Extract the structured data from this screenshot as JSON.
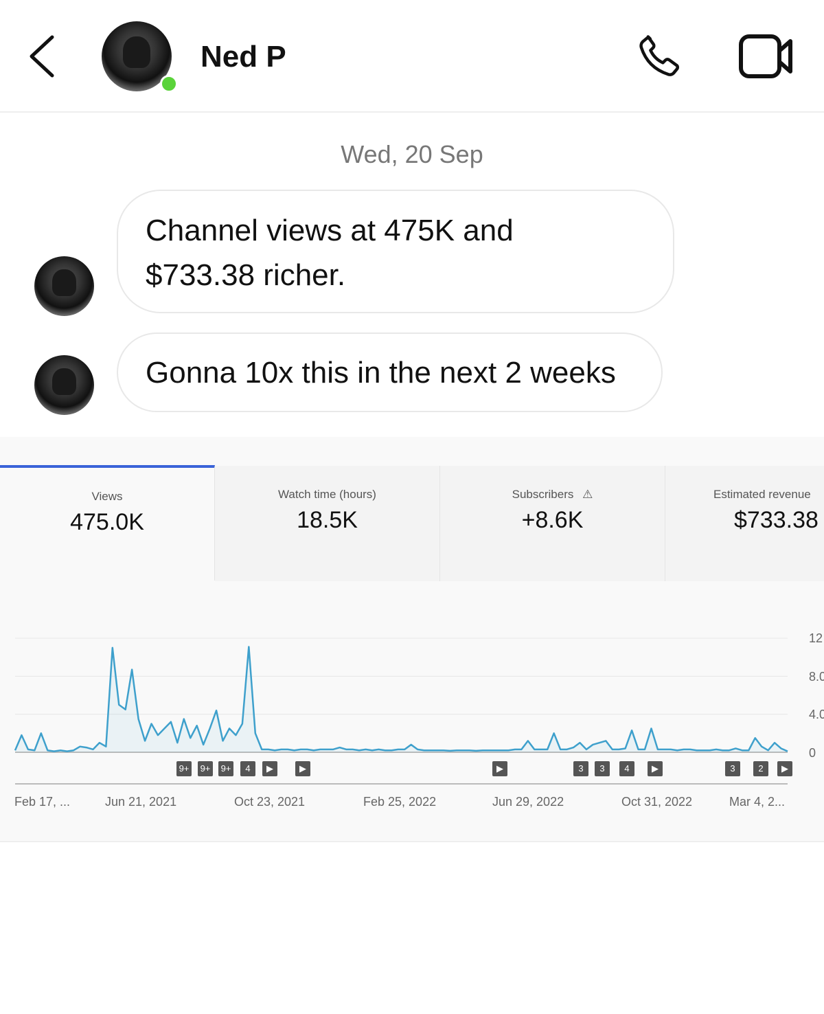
{
  "header": {
    "contact_name": "Ned P",
    "online": true,
    "online_color": "#5ad33a",
    "icons": [
      "chevron-left-icon",
      "phone-icon",
      "video-camera-icon"
    ]
  },
  "chat": {
    "date": "Wed, 20 Sep",
    "messages": [
      {
        "text_line1": "Channel views at 475K and",
        "text_line2": "$733.38 richer."
      },
      {
        "text": "Gonna 10x this in the next 2 weeks"
      }
    ]
  },
  "analytics": {
    "accent": "#3a63d8",
    "tabs": [
      {
        "label": "Views",
        "value": "475.0K",
        "selected": true
      },
      {
        "label": "Watch time (hours)",
        "value": "18.5K"
      },
      {
        "label": "Subscribers",
        "value": "+8.6K",
        "icon": "warning-icon"
      },
      {
        "label": "Estimated revenue",
        "value": "$733.38"
      }
    ],
    "markers": [
      "9+",
      "9+",
      "9+",
      "4",
      "▶",
      "▶",
      "▶",
      "3",
      "3",
      "4",
      "▶",
      "3",
      "2",
      "▶"
    ]
  },
  "chart_data": {
    "type": "line",
    "color": "#3ea0cc",
    "grid": true,
    "x_ticks": [
      "Feb 17, ...",
      "Jun 21, 2021",
      "Oct 23, 2021",
      "Feb 25, 2022",
      "Jun 29, 2022",
      "Oct 31, 2022",
      "Mar 4, 2..."
    ],
    "y_ticks": [
      "12",
      "8.0",
      "4.0",
      "0"
    ],
    "ylim": [
      0,
      12
    ],
    "values": [
      0.2,
      1.8,
      0.3,
      0.2,
      2.0,
      0.2,
      0.1,
      0.2,
      0.1,
      0.2,
      0.6,
      0.5,
      0.3,
      1.0,
      0.6,
      11.0,
      5.0,
      4.5,
      8.7,
      3.5,
      1.2,
      3.0,
      1.8,
      2.5,
      3.2,
      1.0,
      3.5,
      1.5,
      2.8,
      0.8,
      2.5,
      4.4,
      1.2,
      2.5,
      1.8,
      3.0,
      11.1,
      2.0,
      0.3,
      0.3,
      0.2,
      0.3,
      0.3,
      0.2,
      0.3,
      0.3,
      0.2,
      0.3,
      0.3,
      0.3,
      0.5,
      0.3,
      0.3,
      0.2,
      0.3,
      0.2,
      0.3,
      0.2,
      0.2,
      0.3,
      0.3,
      0.8,
      0.3,
      0.2,
      0.2,
      0.2,
      0.2,
      0.15,
      0.2,
      0.2,
      0.2,
      0.15,
      0.2,
      0.2,
      0.2,
      0.2,
      0.2,
      0.3,
      0.3,
      1.2,
      0.3,
      0.3,
      0.3,
      2.0,
      0.3,
      0.3,
      0.5,
      1.0,
      0.3,
      0.8,
      1.0,
      1.2,
      0.3,
      0.3,
      0.4,
      2.3,
      0.3,
      0.3,
      2.5,
      0.3,
      0.3,
      0.3,
      0.2,
      0.3,
      0.3,
      0.2,
      0.2,
      0.2,
      0.3,
      0.2,
      0.2,
      0.4,
      0.2,
      0.2,
      1.5,
      0.6,
      0.2,
      1.0,
      0.4,
      0.1
    ]
  }
}
